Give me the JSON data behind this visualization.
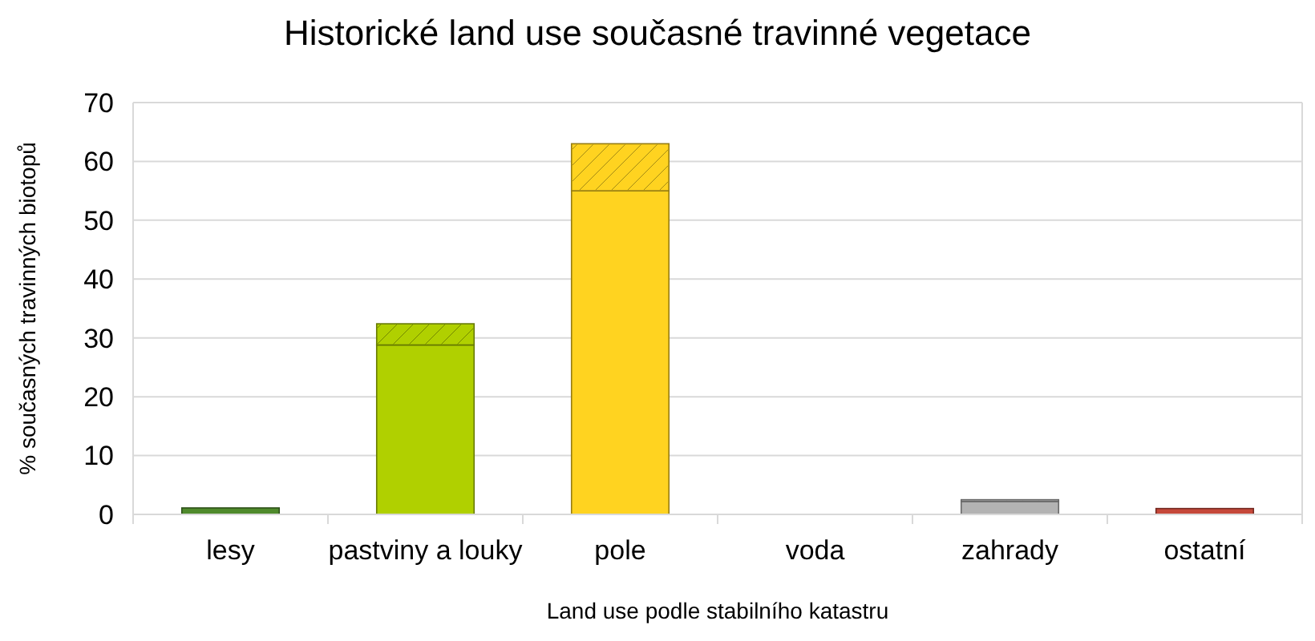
{
  "chart_data": {
    "type": "bar",
    "title": "Historické land use současné travinné vegetace",
    "xlabel": "Land use podle stabilního katastru",
    "ylabel": "% současných travinných biotopů",
    "categories": [
      "lesy",
      "pastviny a louky",
      "pole",
      "voda",
      "zahrady",
      "ostatní"
    ],
    "stacked": true,
    "series": [
      {
        "colors": [
          "#4f8a2c",
          "#b0d000",
          "#ffd320",
          "#004586",
          "#b3b3b3",
          "#c5483a"
        ],
        "values": [
          1.1,
          28.8,
          55,
          0,
          2.2,
          1
        ]
      },
      {
        "colors": [
          "#4f8a2c",
          "#b0d000",
          "#ffd320",
          "#004586",
          "#b3b3b3",
          "#c5483a"
        ],
        "values": [
          0,
          3.6,
          8,
          0,
          0.3,
          0
        ]
      }
    ],
    "ylim": [
      0,
      70
    ],
    "yticks": [
      0,
      10,
      20,
      30,
      40,
      50,
      60,
      70
    ],
    "grid": "y"
  }
}
